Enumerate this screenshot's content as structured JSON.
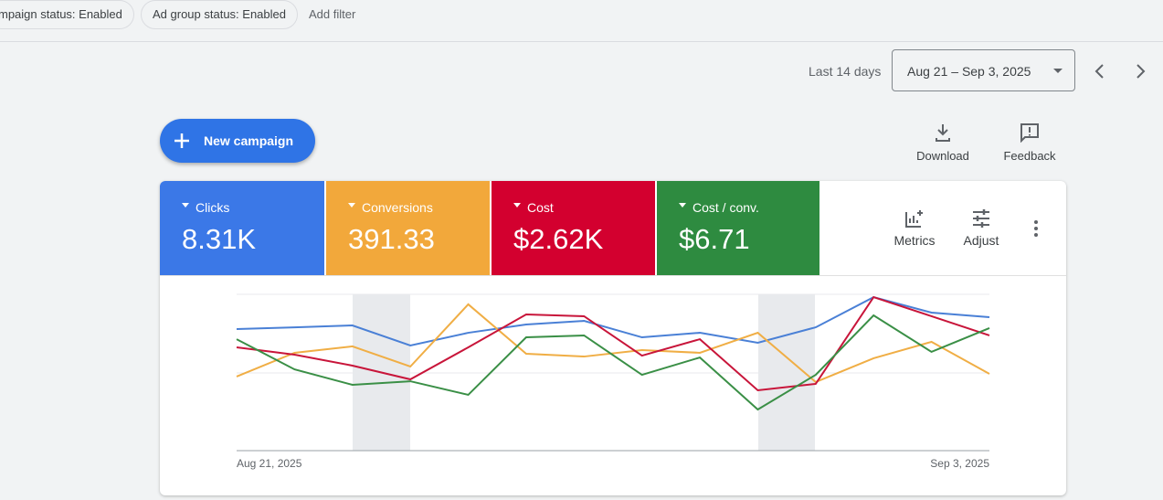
{
  "filters": {
    "chips": [
      "mpaign status: Enabled",
      "Ad group status: Enabled"
    ],
    "add_filter": "Add filter"
  },
  "date_range": {
    "label": "Last 14 days",
    "value": "Aug 21 – Sep 3, 2025"
  },
  "toolbar": {
    "new_campaign": "New campaign",
    "download": "Download",
    "feedback": "Feedback"
  },
  "metrics": [
    {
      "label": "Clicks",
      "value": "8.31K",
      "color": "#3b78e7"
    },
    {
      "label": "Conversions",
      "value": "391.33",
      "color": "#f2a83b"
    },
    {
      "label": "Cost",
      "value": "$2.62K",
      "color": "#d3002f"
    },
    {
      "label": "Cost / conv.",
      "value": "$6.71",
      "color": "#2e8b40"
    }
  ],
  "card_actions": {
    "metrics": "Metrics",
    "adjust": "Adjust"
  },
  "chart": {
    "type": "line",
    "x_start": "Aug 21, 2025",
    "x_end": "Sep 3, 2025",
    "ylim": [
      0,
      100
    ],
    "series": [
      {
        "color": "#4a80d6",
        "values": [
          77.8,
          78.9,
          80.1,
          67.3,
          75.4,
          80.7,
          83.0,
          72.5,
          75.4,
          69.0,
          78.9,
          98.2,
          88.3,
          85.4
        ]
      },
      {
        "color": "#f0ae45",
        "values": [
          47.4,
          62.6,
          66.7,
          53.8,
          93.6,
          62.0,
          60.2,
          64.3,
          62.6,
          75.4,
          43.9,
          59.1,
          69.6,
          49.1
        ]
      },
      {
        "color": "#c8153a",
        "values": [
          66.1,
          61.4,
          54.4,
          45.6,
          66.1,
          87.1,
          86.0,
          60.8,
          71.3,
          38.6,
          42.7,
          98.2,
          86.0,
          73.7
        ]
      },
      {
        "color": "#3a8f46",
        "values": [
          71.3,
          52.0,
          42.1,
          44.4,
          35.7,
          72.5,
          73.7,
          48.5,
          59.6,
          26.3,
          48.5,
          86.5,
          63.2,
          78.4
        ]
      }
    ]
  }
}
